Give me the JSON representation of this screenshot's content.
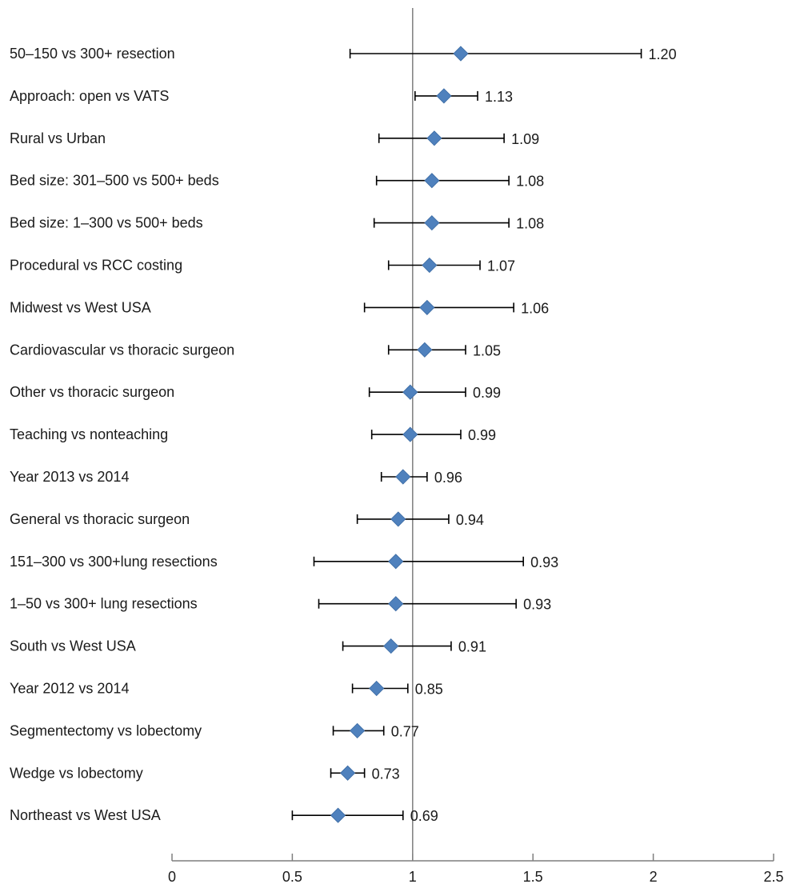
{
  "chart_data": {
    "type": "forest",
    "title": "",
    "xlabel": "",
    "ylabel": "",
    "xlim": [
      0,
      2.5
    ],
    "x_ticks": [
      0,
      0.5,
      1,
      1.5,
      2,
      2.5
    ],
    "x_tick_labels": [
      "0",
      "0.5",
      "1",
      "1.5",
      "2",
      "2.5"
    ],
    "reference_line": 1,
    "grid": false,
    "legend": "none",
    "marker": "diamond",
    "marker_color": "#4f81bd",
    "rows": [
      {
        "label": "50–150 vs 300+ resection",
        "estimate": 1.2,
        "lower": 0.74,
        "upper": 1.95,
        "value_label": "1.20"
      },
      {
        "label": "Approach: open vs VATS",
        "estimate": 1.13,
        "lower": 1.01,
        "upper": 1.27,
        "value_label": "1.13"
      },
      {
        "label": "Rural vs Urban",
        "estimate": 1.09,
        "lower": 0.86,
        "upper": 1.38,
        "value_label": "1.09"
      },
      {
        "label": "Bed size: 301–500 vs 500+ beds",
        "estimate": 1.08,
        "lower": 0.85,
        "upper": 1.4,
        "value_label": "1.08"
      },
      {
        "label": "Bed size: 1–300 vs 500+ beds",
        "estimate": 1.08,
        "lower": 0.84,
        "upper": 1.4,
        "value_label": "1.08"
      },
      {
        "label": "Procedural vs RCC costing",
        "estimate": 1.07,
        "lower": 0.9,
        "upper": 1.28,
        "value_label": "1.07"
      },
      {
        "label": "Midwest vs West USA",
        "estimate": 1.06,
        "lower": 0.8,
        "upper": 1.42,
        "value_label": "1.06"
      },
      {
        "label": "Cardiovascular vs thoracic surgeon",
        "estimate": 1.05,
        "lower": 0.9,
        "upper": 1.22,
        "value_label": "1.05"
      },
      {
        "label": "Other vs thoracic surgeon",
        "estimate": 0.99,
        "lower": 0.82,
        "upper": 1.22,
        "value_label": "0.99"
      },
      {
        "label": "Teaching vs nonteaching",
        "estimate": 0.99,
        "lower": 0.83,
        "upper": 1.2,
        "value_label": "0.99"
      },
      {
        "label": "Year 2013 vs 2014",
        "estimate": 0.96,
        "lower": 0.87,
        "upper": 1.06,
        "value_label": "0.96"
      },
      {
        "label": "General vs thoracic surgeon",
        "estimate": 0.94,
        "lower": 0.77,
        "upper": 1.15,
        "value_label": "0.94"
      },
      {
        "label": "151–300 vs 300+lung resections",
        "estimate": 0.93,
        "lower": 0.59,
        "upper": 1.46,
        "value_label": "0.93"
      },
      {
        "label": "1–50 vs 300+ lung resections",
        "estimate": 0.93,
        "lower": 0.61,
        "upper": 1.43,
        "value_label": "0.93"
      },
      {
        "label": "South vs West USA",
        "estimate": 0.91,
        "lower": 0.71,
        "upper": 1.16,
        "value_label": "0.91"
      },
      {
        "label": "Year 2012 vs 2014",
        "estimate": 0.85,
        "lower": 0.75,
        "upper": 0.98,
        "value_label": "0.85"
      },
      {
        "label": "Segmentectomy vs lobectomy",
        "estimate": 0.77,
        "lower": 0.67,
        "upper": 0.88,
        "value_label": "0.77"
      },
      {
        "label": "Wedge vs lobectomy",
        "estimate": 0.73,
        "lower": 0.66,
        "upper": 0.8,
        "value_label": "0.73"
      },
      {
        "label": "Northeast vs West USA",
        "estimate": 0.69,
        "lower": 0.5,
        "upper": 0.96,
        "value_label": "0.69"
      }
    ]
  }
}
